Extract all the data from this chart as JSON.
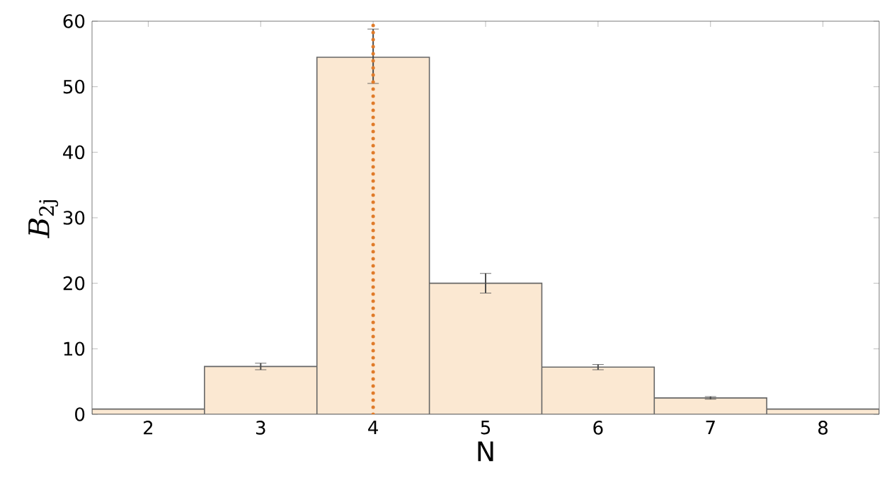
{
  "chart_data": {
    "type": "bar",
    "xlabel": "N",
    "ylabel": "*B*$_{2j}$",
    "x": [
      2,
      3,
      4,
      5,
      6,
      7,
      8
    ],
    "values": [
      0.8,
      7.3,
      54.5,
      20,
      7.2,
      2.5,
      0.8
    ],
    "errors": [
      null,
      0.5,
      [
        50.5,
        58.8
      ],
      1.5,
      0.4,
      0.2,
      null
    ],
    "color": "#fbe8d2",
    "xlim": [
      1.5,
      8.5
    ],
    "xticks": [
      2,
      3,
      4,
      5,
      6,
      7,
      8
    ],
    "ylim": [
      0,
      60
    ],
    "yticks": [
      0,
      10,
      20,
      30,
      40,
      50,
      60
    ],
    "ref_lines": [
      {
        "axis": "x",
        "value": 4,
        "color": "#e07b2a",
        "line_style": "dotted"
      }
    ],
    "grid": false
  }
}
